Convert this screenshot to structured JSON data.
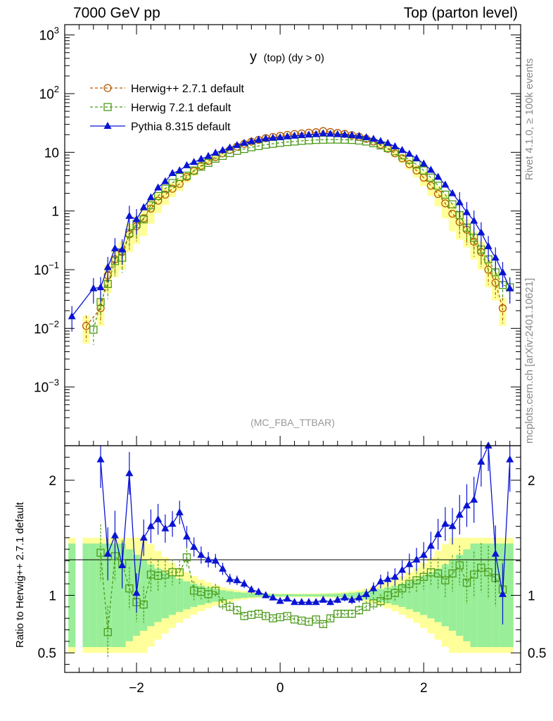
{
  "header": {
    "left": "7000 GeV pp",
    "right": "Top (parton level)"
  },
  "side": {
    "rivet": "Rivet 4.1.0, ≥ 100k events",
    "mcplots": "mcplots.cern.ch [arXiv:2401.10621]"
  },
  "chart_data": {
    "type": "line",
    "title": "y (top) (dy > 0)",
    "title_main": "y",
    "title_sub": "(top) (dy > 0)",
    "watermark": "(MC_FBA_TTBAR)",
    "xlim": [
      -3.0,
      3.35
    ],
    "ylim": [
      0.0001,
      1500
    ],
    "yscale": "log",
    "x_ticks": [
      -2,
      0,
      2
    ],
    "x_tick_labels": [
      "−2",
      "0",
      "2"
    ],
    "y_ticks": [
      {
        "base": "10",
        "exp": "3",
        "value": 1000
      },
      {
        "base": "10",
        "exp": "2",
        "value": 100
      },
      {
        "base": "10",
        "exp": "",
        "value": 10
      },
      {
        "base": "1",
        "exp": "",
        "value": 1
      },
      {
        "base": "10",
        "exp": "−1",
        "value": 0.1
      },
      {
        "base": "10",
        "exp": "−2",
        "value": 0.01
      },
      {
        "base": "10",
        "exp": "−3",
        "value": 0.001
      }
    ],
    "legend": [
      {
        "name": "Herwig++ 2.7.1 default",
        "color": "#b35900",
        "marker": "circle",
        "dash": true
      },
      {
        "name": "Herwig 7.2.1 default",
        "color": "#4c9a1a",
        "marker": "square",
        "dash": true
      },
      {
        "name": "Pythia 8.315 default",
        "color": "#0a14d4",
        "marker": "triangle",
        "dash": false
      }
    ],
    "x": [
      -2.9,
      -2.7,
      -2.6,
      -2.5,
      -2.4,
      -2.3,
      -2.2,
      -2.1,
      -2.0,
      -1.9,
      -1.8,
      -1.7,
      -1.6,
      -1.5,
      -1.4,
      -1.3,
      -1.2,
      -1.1,
      -1.0,
      -0.9,
      -0.8,
      -0.7,
      -0.6,
      -0.5,
      -0.4,
      -0.3,
      -0.2,
      -0.1,
      0.0,
      0.1,
      0.2,
      0.3,
      0.4,
      0.5,
      0.6,
      0.7,
      0.8,
      0.9,
      1.0,
      1.1,
      1.2,
      1.3,
      1.4,
      1.5,
      1.6,
      1.7,
      1.8,
      1.9,
      2.0,
      2.1,
      2.2,
      2.3,
      2.4,
      2.5,
      2.6,
      2.7,
      2.8,
      2.9,
      3.0,
      3.1,
      3.2
    ],
    "series": [
      {
        "name": "Herwig++ 2.7.1 default",
        "values": [
          null,
          0.011,
          null,
          0.022,
          0.08,
          0.15,
          0.2,
          0.4,
          0.55,
          0.75,
          1.1,
          1.5,
          1.9,
          2.4,
          2.9,
          3.8,
          4.8,
          5.9,
          7.1,
          8.3,
          9.6,
          11.0,
          12.5,
          13.9,
          15.2,
          16.3,
          17.4,
          18.3,
          19.1,
          19.8,
          20.5,
          21.0,
          21.6,
          22.0,
          23.0,
          22.2,
          21.4,
          20.6,
          19.6,
          18.4,
          17.0,
          15.3,
          13.5,
          11.5,
          9.6,
          7.9,
          6.3,
          4.9,
          3.7,
          2.7,
          1.95,
          1.35,
          0.9,
          0.65,
          0.48,
          0.3,
          0.2,
          0.1,
          0.06,
          0.022,
          null
        ]
      },
      {
        "name": "Herwig 7.2.1 default",
        "values": [
          null,
          null,
          0.0095,
          0.028,
          0.057,
          0.14,
          0.16,
          0.42,
          0.6,
          0.72,
          1.25,
          1.8,
          2.4,
          3.0,
          3.8,
          4.0,
          4.9,
          5.7,
          6.6,
          7.8,
          8.7,
          9.7,
          10.6,
          11.4,
          12.2,
          12.8,
          13.5,
          14.0,
          14.5,
          15.0,
          15.3,
          15.7,
          16.0,
          16.3,
          16.4,
          16.5,
          16.5,
          16.4,
          16.3,
          15.9,
          15.3,
          14.3,
          13.1,
          11.8,
          10.4,
          8.9,
          7.5,
          6.2,
          4.9,
          3.7,
          2.7,
          1.9,
          1.3,
          0.85,
          0.52,
          0.35,
          0.22,
          0.15,
          0.09,
          0.055,
          0.05
        ]
      },
      {
        "name": "Pythia 8.315 default",
        "values": [
          0.016,
          null,
          0.048,
          0.05,
          0.11,
          0.23,
          0.22,
          0.82,
          0.72,
          1.15,
          1.7,
          2.5,
          3.2,
          4.4,
          4.9,
          6.0,
          6.8,
          7.7,
          8.6,
          9.8,
          10.8,
          12.0,
          13.2,
          14.4,
          15.4,
          16.3,
          17.2,
          17.6,
          18.0,
          18.6,
          19.1,
          19.5,
          19.9,
          20.3,
          21.0,
          20.6,
          20.3,
          19.9,
          19.6,
          18.9,
          18.0,
          16.9,
          15.5,
          14.3,
          12.6,
          10.9,
          9.4,
          7.9,
          6.4,
          5.0,
          3.8,
          2.8,
          2.0,
          1.4,
          0.95,
          0.68,
          0.43,
          0.25,
          0.16,
          0.09,
          0.048
        ]
      }
    ],
    "ratio": {
      "ylabel": "Ratio to Herwig++ 2.7.1 default",
      "ylim": [
        0.33,
        2.3
      ],
      "y_ticks": [
        0.5,
        1,
        2
      ],
      "y_tick_labels": [
        "0.5",
        "1",
        "2"
      ],
      "series": [
        {
          "name": "Herwig 7.2.1 default",
          "values": [
            null,
            null,
            null,
            1.37,
            0.68,
            1.34,
            1.28,
            1.06,
            0.94,
            0.92,
            1.18,
            1.17,
            1.18,
            1.2,
            1.2,
            1.33,
            1.04,
            1.03,
            1.01,
            1.04,
            0.93,
            0.9,
            0.87,
            0.82,
            0.83,
            0.84,
            0.82,
            0.8,
            0.81,
            0.82,
            0.79,
            0.78,
            0.77,
            0.79,
            0.75,
            0.8,
            0.84,
            0.84,
            0.84,
            0.87,
            0.9,
            0.93,
            0.95,
            1.0,
            1.02,
            1.06,
            1.1,
            1.13,
            1.16,
            1.2,
            1.19,
            1.13,
            1.19,
            1.26,
            1.11,
            1.18,
            1.24,
            1.2,
            1.15,
            1.05,
            null
          ]
        },
        {
          "name": "Pythia 8.315 default",
          "values": [
            null,
            null,
            null,
            2.18,
            1.36,
            1.52,
            1.26,
            2.06,
            1.02,
            1.5,
            1.6,
            1.66,
            1.58,
            1.62,
            1.72,
            1.51,
            1.42,
            1.35,
            1.31,
            1.3,
            1.23,
            1.14,
            1.13,
            1.1,
            1.05,
            1.03,
            1.0,
            0.98,
            0.95,
            0.97,
            0.94,
            0.94,
            0.94,
            0.94,
            0.96,
            0.94,
            0.96,
            0.98,
            0.96,
            0.98,
            1.01,
            1.06,
            1.12,
            1.14,
            1.16,
            1.22,
            1.27,
            1.31,
            1.35,
            1.43,
            1.53,
            1.62,
            1.6,
            1.7,
            1.78,
            1.83,
            2.16,
            2.31,
            1.36,
            1.01,
            2.18
          ]
        }
      ]
    }
  }
}
